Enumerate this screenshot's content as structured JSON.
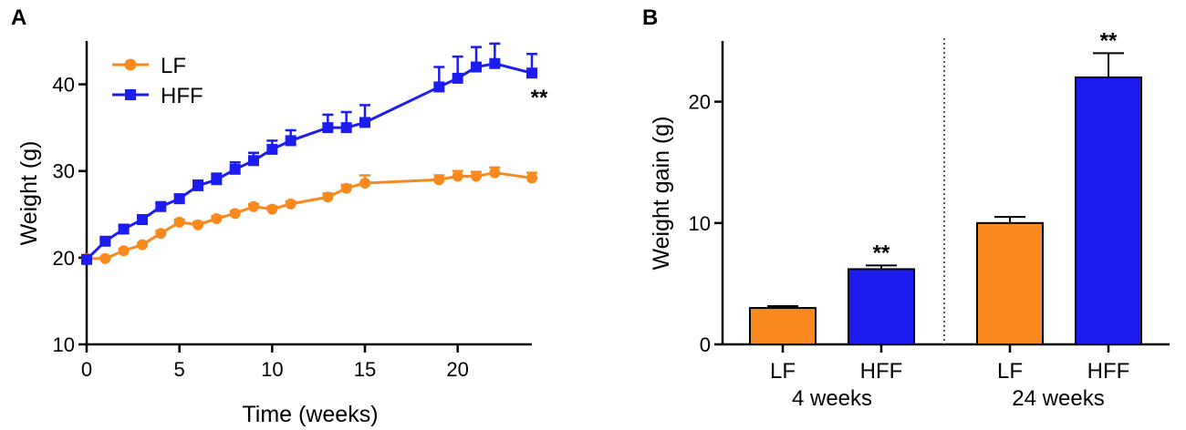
{
  "colors": {
    "lf": "#f7891f",
    "hff": "#1c1cf0",
    "axis": "#000000",
    "bar_outline": "#000000"
  },
  "panel_a": {
    "letter": "A",
    "chart_data": {
      "type": "line",
      "xlabel": "Time (weeks)",
      "ylabel": "Weight (g)",
      "xlim": [
        0,
        24
      ],
      "ylim": [
        10,
        45
      ],
      "xticks": [
        0,
        5,
        10,
        15,
        20
      ],
      "yticks": [
        10,
        20,
        30,
        40
      ],
      "legend_position": "top-left",
      "annotation": "**",
      "series": [
        {
          "name": "LF",
          "color_key": "lf",
          "marker": "circle",
          "x": [
            0,
            1,
            2,
            3,
            4,
            5,
            6,
            7,
            8,
            9,
            10,
            11,
            13,
            14,
            15,
            19,
            20,
            21,
            22,
            24
          ],
          "y": [
            19.9,
            19.9,
            20.8,
            21.5,
            22.8,
            24.1,
            23.8,
            24.5,
            25.1,
            25.9,
            25.6,
            26.2,
            27.0,
            28.0,
            28.6,
            29.0,
            29.4,
            29.4,
            29.8,
            29.2
          ],
          "err": [
            0.2,
            0.2,
            0.2,
            0.2,
            0.3,
            0.3,
            0.3,
            0.3,
            0.3,
            0.3,
            0.3,
            0.3,
            0.4,
            0.4,
            0.9,
            0.5,
            0.6,
            0.5,
            0.6,
            0.6
          ]
        },
        {
          "name": "HFF",
          "color_key": "hff",
          "marker": "square",
          "x": [
            0,
            1,
            2,
            3,
            4,
            5,
            6,
            7,
            8,
            9,
            10,
            11,
            13,
            14,
            15,
            19,
            20,
            21,
            22,
            24
          ],
          "y": [
            19.8,
            21.9,
            23.3,
            24.4,
            25.9,
            26.8,
            28.3,
            29.0,
            30.2,
            31.2,
            32.5,
            33.5,
            35.0,
            35.0,
            35.6,
            39.7,
            40.7,
            42.0,
            42.4,
            41.3
          ],
          "err": [
            0.3,
            0.3,
            0.3,
            0.4,
            0.4,
            0.5,
            0.6,
            0.7,
            0.8,
            0.9,
            1.0,
            1.2,
            1.5,
            1.8,
            2.0,
            2.3,
            2.5,
            2.3,
            2.3,
            2.2
          ]
        }
      ]
    }
  },
  "panel_b": {
    "letter": "B",
    "chart_data": {
      "type": "bar",
      "ylabel": "Weight gain (g)",
      "ylim": [
        0,
        25
      ],
      "yticks": [
        0,
        10,
        20
      ],
      "categories": [
        "LF",
        "HFF",
        "LF",
        "HFF"
      ],
      "groups": [
        "4 weeks",
        "24 weeks"
      ],
      "values": [
        3.0,
        6.2,
        10.0,
        22.0
      ],
      "errors": [
        0.15,
        0.3,
        0.5,
        2.0
      ],
      "bar_color_keys": [
        "lf",
        "hff",
        "lf",
        "hff"
      ],
      "annotations": [
        "",
        "**",
        "",
        "**"
      ]
    }
  }
}
